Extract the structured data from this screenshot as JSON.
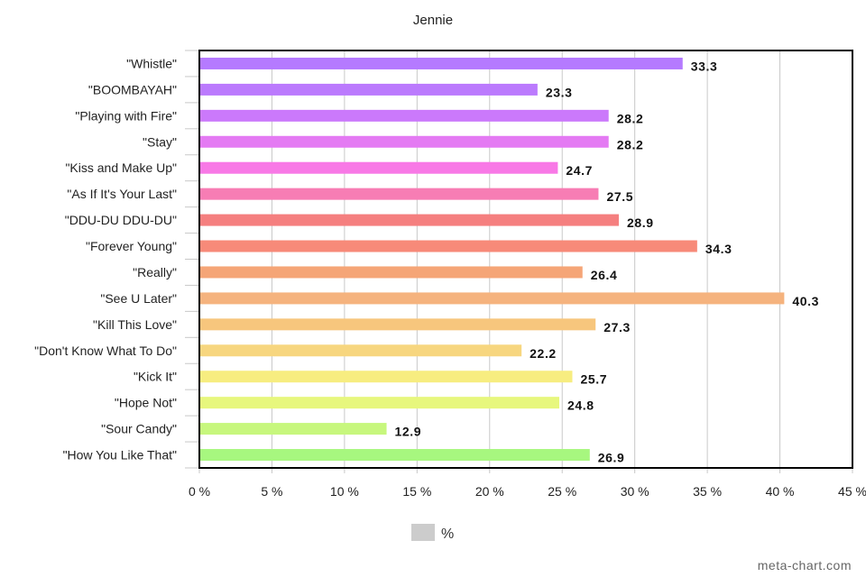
{
  "chart_data": {
    "type": "bar",
    "orientation": "horizontal",
    "title": "Jennie",
    "categories": [
      "\"Whistle\"",
      "\"BOOMBAYAH\"",
      "\"Playing with Fire\"",
      "\"Stay\"",
      "\"Kiss and Make Up\"",
      "\"As If It's Your Last\"",
      "\"DDU-DU DDU-DU\"",
      "\"Forever Young\"",
      "\"Really\"",
      "\"See U Later\"",
      "\"Kill This Love\"",
      "\"Don't Know What To Do\"",
      "\"Kick It\"",
      "\"Hope Not\"",
      "\"Sour Candy\"",
      "\"How You Like That\""
    ],
    "values": [
      33.3,
      23.3,
      28.2,
      28.2,
      24.7,
      27.5,
      28.9,
      34.3,
      26.4,
      40.3,
      27.3,
      22.2,
      25.7,
      24.8,
      12.9,
      26.9
    ],
    "value_labels": [
      "33.3",
      "23.3",
      "28.2",
      "28.2",
      "24.7",
      "27.5",
      "28.9",
      "34.3",
      "26.4",
      "40.3",
      "27.3",
      "22.2",
      "25.7",
      "24.8",
      "12.9",
      "26.9"
    ],
    "colors": [
      "#b57aff",
      "#bb7afd",
      "#cb79fb",
      "#e47af3",
      "#f879e6",
      "#f77db4",
      "#f57f7f",
      "#f78a79",
      "#f5a577",
      "#f5b37e",
      "#f7c67d",
      "#f7d67f",
      "#f7ed80",
      "#e7f77d",
      "#c7f77d",
      "#a7f77f"
    ],
    "xlim": [
      0,
      45
    ],
    "xticks": [
      "0 %",
      "5 %",
      "10 %",
      "15 %",
      "20 %",
      "25 %",
      "30 %",
      "35 %",
      "40 %",
      "45 %"
    ],
    "xtick_values": [
      0,
      5,
      10,
      15,
      20,
      25,
      30,
      35,
      40,
      45
    ],
    "xlabel": "",
    "ylabel": "",
    "grid": true,
    "legend": {
      "label": "%",
      "swatch_color": "#cccccc",
      "placement": "bottom-center"
    }
  },
  "watermark": "meta-chart.com"
}
